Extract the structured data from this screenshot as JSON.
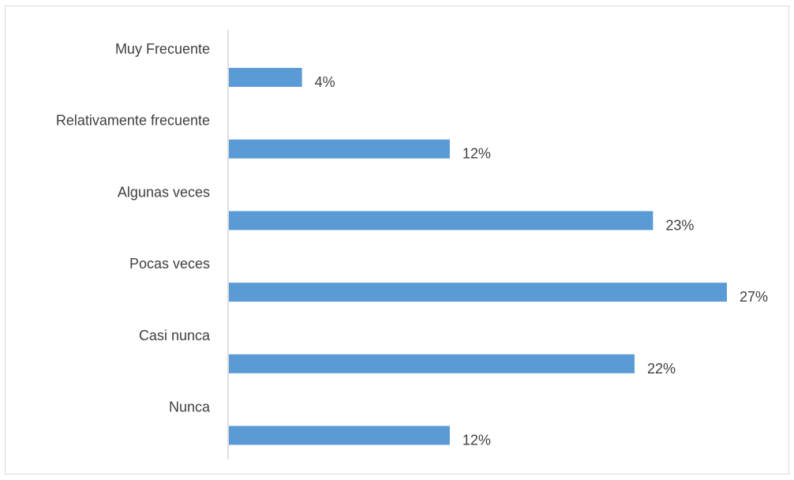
{
  "chart_data": {
    "type": "bar",
    "orientation": "horizontal",
    "title": "",
    "xlabel": "",
    "ylabel": "",
    "categories": [
      "Muy Frecuente",
      "Relativamente frecuente",
      "Algunas veces",
      "Pocas veces",
      "Casi nunca",
      "Nunca"
    ],
    "values": [
      4,
      12,
      23,
      27,
      22,
      12
    ],
    "data_labels": [
      "4%",
      "12%",
      "23%",
      "27%",
      "22%",
      "12%"
    ],
    "unit": "%",
    "xlim": [
      0,
      27
    ],
    "grid": false,
    "legend": "none",
    "bar_color": "#5b9bd5",
    "axis_color": "#bfbfbf",
    "label_color": "#404040",
    "border_color": "#d9d9d9"
  }
}
